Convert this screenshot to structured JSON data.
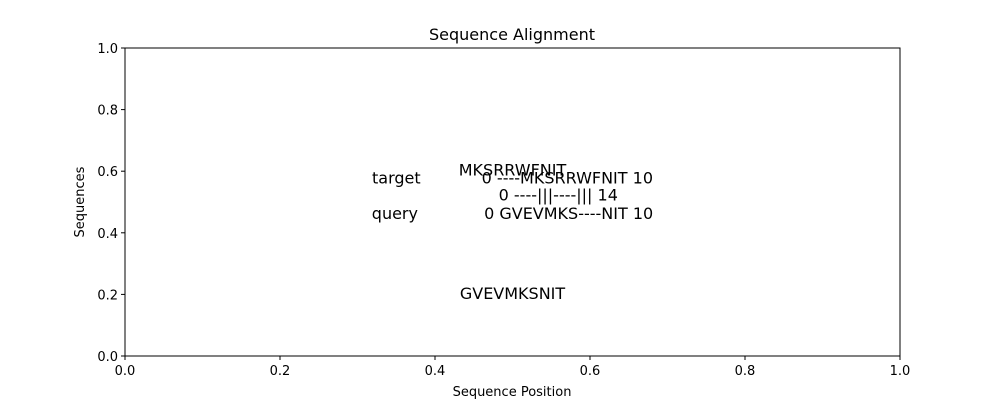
{
  "chart_data": {
    "type": "scatter",
    "title": "Sequence Alignment",
    "xlabel": "Sequence Position",
    "ylabel": "Sequences",
    "xlim": [
      0.0,
      1.0
    ],
    "ylim": [
      0.0,
      1.0
    ],
    "xticks": [
      "0.0",
      "0.2",
      "0.4",
      "0.6",
      "0.8",
      "1.0"
    ],
    "yticks": [
      "0.0",
      "0.2",
      "0.4",
      "0.6",
      "0.8",
      "1.0"
    ],
    "grid": false,
    "series": [],
    "annotations": [
      {
        "text": "MKSRRWFNIT",
        "x": 0.5,
        "y": 0.6
      },
      {
        "text": "GVEVMKSNIT",
        "x": 0.5,
        "y": 0.2
      },
      {
        "text": "target            0 ----MKSRRWFNIT 10",
        "x": 0.5,
        "y": 0.575
      },
      {
        "text": "                  0 ----|||----||| 14",
        "x": 0.5,
        "y": 0.52
      },
      {
        "text": "query             0 GVEVMKS----NIT 10",
        "x": 0.5,
        "y": 0.46
      }
    ]
  }
}
